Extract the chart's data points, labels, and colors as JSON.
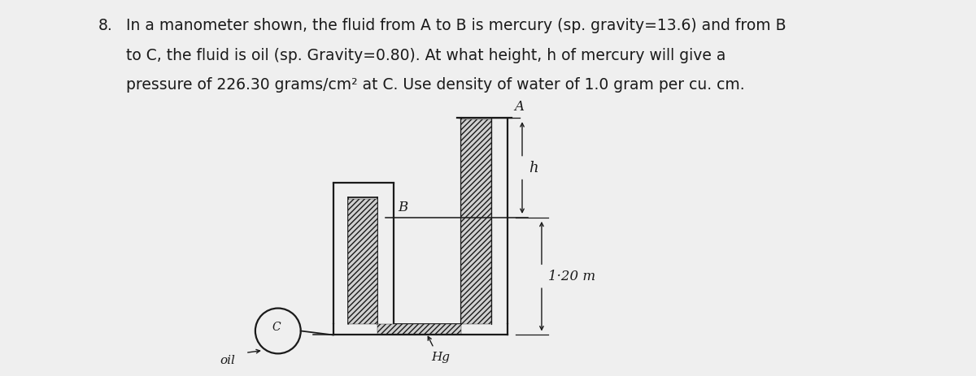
{
  "background_color": "#efefef",
  "text_color": "#222222",
  "problem_number": "8.",
  "problem_text_line1": "In a manometer shown, the fluid from A to B is mercury (sp. gravity=13.6) and from B",
  "problem_text_line2": "to C, the fluid is oil (sp. Gravity=0.80). At what height, h of mercury will give a",
  "problem_text_line3": "pressure of 226.30 grams/cm² at C. Use density of water of 1.0 gram per cu. cm.",
  "line_color": "#1a1a1a",
  "hatch_color": "#444444",
  "label_A": "A",
  "label_B": "B",
  "label_C": "C",
  "label_h": "h",
  "label_Hg": "Hg",
  "label_oil": "oil",
  "label_120m": "1·20 m",
  "fs_text": 13.5,
  "fs_label": 12
}
